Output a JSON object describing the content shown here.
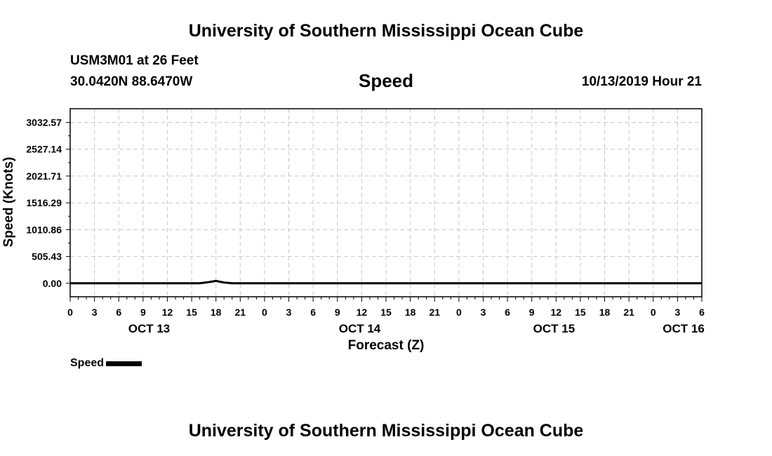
{
  "header": {
    "title": "University of Southern Mississippi Ocean Cube",
    "station": "USM3M01 at 26 Feet",
    "coords": "30.0420N 88.6470W",
    "variable": "Speed",
    "datetime": "10/13/2019 Hour 21"
  },
  "footer": {
    "title": "University of Southern Mississippi Ocean Cube"
  },
  "chart_data": {
    "type": "line",
    "ylabel": "Speed (Knots)",
    "xlabel": "Forecast (Z)",
    "xlim": [
      0,
      78
    ],
    "ylim": [
      -254,
      3290
    ],
    "yticks": [
      0.0,
      505.43,
      1010.86,
      1516.29,
      2021.71,
      2527.14,
      3032.57
    ],
    "ytick_labels": [
      "0.00",
      "505.43",
      "1010.86",
      "1516.29",
      "2021.71",
      "2527.14",
      "3032.57"
    ],
    "xticks": [
      0,
      3,
      6,
      9,
      12,
      15,
      18,
      21,
      24,
      27,
      30,
      33,
      36,
      39,
      42,
      45,
      48,
      51,
      54,
      57,
      60,
      63,
      66,
      69,
      72,
      75,
      78
    ],
    "xtick_labels": [
      "0",
      "3",
      "6",
      "9",
      "12",
      "15",
      "18",
      "21",
      "0",
      "3",
      "6",
      "9",
      "12",
      "15",
      "18",
      "21",
      "0",
      "3",
      "6",
      "9",
      "12",
      "15",
      "18",
      "21",
      "0",
      "3",
      "6"
    ],
    "day_labels": [
      {
        "x": 9.75,
        "label": "OCT 13"
      },
      {
        "x": 35.75,
        "label": "OCT 14"
      },
      {
        "x": 59.75,
        "label": "OCT 15"
      },
      {
        "x": 75.75,
        "label": "OCT 16"
      }
    ],
    "grid": true,
    "legend_position": "bottom-left",
    "series": [
      {
        "name": "Speed",
        "color": "#000000",
        "x": [
          0,
          1,
          2,
          3,
          4,
          5,
          6,
          7,
          8,
          9,
          10,
          11,
          12,
          13,
          14,
          15,
          16,
          17,
          18,
          19,
          20,
          21,
          22,
          23,
          24,
          25,
          26,
          27,
          28,
          29,
          30,
          31,
          32,
          33,
          34,
          35,
          36,
          37,
          38,
          39,
          40,
          41,
          42,
          43,
          44,
          45,
          46,
          47,
          48,
          49,
          50,
          51,
          52,
          53,
          54,
          55,
          56,
          57,
          58,
          59,
          60,
          61,
          62,
          63,
          64,
          65,
          66,
          67,
          68,
          69,
          70,
          71,
          72,
          73,
          74,
          75,
          76,
          77,
          78
        ],
        "values": [
          0,
          0,
          0,
          0,
          0,
          0,
          0,
          0,
          0,
          0,
          0,
          0,
          0,
          0,
          0,
          0,
          0,
          20,
          45,
          15,
          0,
          0,
          0,
          0,
          0,
          0,
          0,
          0,
          0,
          0,
          0,
          0,
          0,
          0,
          0,
          0,
          0,
          0,
          0,
          0,
          0,
          0,
          0,
          0,
          0,
          0,
          0,
          0,
          0,
          0,
          0,
          0,
          0,
          0,
          0,
          0,
          0,
          0,
          0,
          0,
          0,
          0,
          0,
          0,
          0,
          0,
          0,
          0,
          0,
          0,
          0,
          0,
          0,
          0,
          0,
          0,
          0,
          0,
          0
        ]
      }
    ]
  }
}
